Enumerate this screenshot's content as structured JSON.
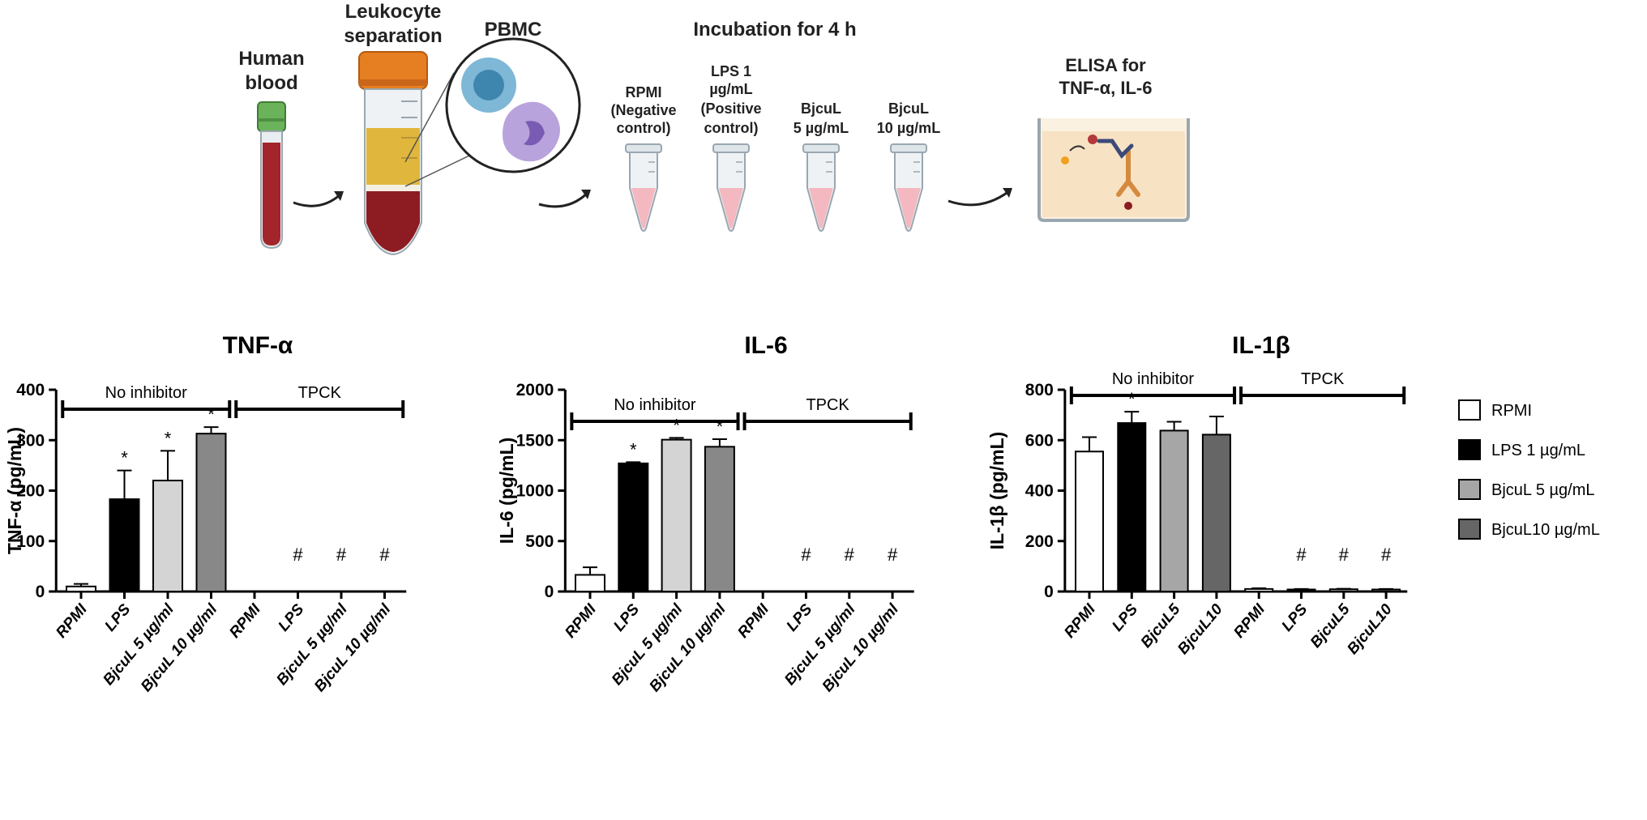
{
  "workflow": {
    "human_blood": [
      "Human",
      "blood"
    ],
    "leukocyte_separation": [
      "Leukocyte",
      "separation"
    ],
    "pbmc": "PBMC",
    "incubation": "Incubation for 4 h",
    "tubes": [
      [
        "RPMI",
        "(Negative",
        "control)"
      ],
      [
        "LPS 1",
        "µg/mL",
        "(Positive",
        "control)"
      ],
      [
        "BjcuL",
        "5 µg/mL"
      ],
      [
        "BjcuL",
        "10 µg/mL"
      ]
    ],
    "elisa": [
      "ELISA for",
      "TNF-α, IL-6"
    ]
  },
  "colors": {
    "RPMI": "#ffffff",
    "LPS": "#000000",
    "Bjcu5_light": "#d4d4d4",
    "Bjcu10_mid": "#888888",
    "Bjcu5_il1b": "#a6a6a6",
    "Bjcu10_il1b": "#666666",
    "blood": "#a3242a",
    "cap_green": "#6bb35a",
    "cap_orange": "#e67e22",
    "plasma": "#e0b73c"
  },
  "legend": {
    "items": [
      {
        "label": "RPMI",
        "color": "#ffffff"
      },
      {
        "label": "LPS 1 µg/mL",
        "color": "#000000"
      },
      {
        "label": "BjcuL 5 µg/mL",
        "color": "#a6a6a6"
      },
      {
        "label": "BjcuL10 µg/mL",
        "color": "#666666"
      }
    ]
  },
  "chart_data": [
    {
      "type": "bar",
      "title": "TNF-α",
      "ylabel": "TNF-α (pg/mL)",
      "ylim": [
        0,
        400
      ],
      "yticks": [
        0,
        100,
        200,
        300,
        400
      ],
      "categories": [
        "RPMI",
        "LPS",
        "BjcuL 5 µg/ml",
        "BjcuL 10 µg/ml",
        "RPMI",
        "LPS",
        "BjcuL 5 µg/ml",
        "BjcuL 10 µg/ml"
      ],
      "values": [
        10,
        183,
        220,
        313,
        0,
        0,
        0,
        0
      ],
      "errors": [
        5,
        57,
        59,
        13,
        0,
        0,
        0,
        0
      ],
      "colors": [
        "#ffffff",
        "#000000",
        "#d4d4d4",
        "#888888",
        "#ffffff",
        "#000000",
        "#d4d4d4",
        "#888888"
      ],
      "marks": [
        "",
        "*",
        "*",
        "*",
        "",
        "#",
        "#",
        "#"
      ],
      "groups": [
        {
          "label": "No inhibitor",
          "from": 0,
          "to": 3
        },
        {
          "label": "TPCK",
          "from": 4,
          "to": 7
        }
      ]
    },
    {
      "type": "bar",
      "title": "IL-6",
      "ylabel": "IL-6 (pg/mL)",
      "ylim": [
        0,
        2000
      ],
      "yticks": [
        0,
        500,
        1000,
        1500,
        2000
      ],
      "categories": [
        "RPMI",
        "LPS",
        "BjcuL 5 µg/ml",
        "BjcuL 10 µg/ml",
        "RPMI",
        "LPS",
        "BjcuL 5 µg/ml",
        "BjcuL 10 µg/ml"
      ],
      "values": [
        165,
        1270,
        1505,
        1435,
        0,
        0,
        0,
        0
      ],
      "errors": [
        75,
        12,
        18,
        75,
        0,
        0,
        0,
        0
      ],
      "colors": [
        "#ffffff",
        "#000000",
        "#d4d4d4",
        "#888888",
        "#ffffff",
        "#000000",
        "#d4d4d4",
        "#888888"
      ],
      "marks": [
        "",
        "*",
        "*",
        "*",
        "",
        "#",
        "#",
        "#"
      ],
      "groups": [
        {
          "label": "No inhibitor",
          "from": 0,
          "to": 3
        },
        {
          "label": "TPCK",
          "from": 4,
          "to": 7
        }
      ]
    },
    {
      "type": "bar",
      "title": "IL-1β",
      "ylabel": "IL-1β (pg/mL)",
      "ylim": [
        0,
        800
      ],
      "yticks": [
        0,
        200,
        400,
        600,
        800
      ],
      "categories": [
        "RPMI",
        "LPS",
        "BjcuL5",
        "BjcuL10",
        "RPMI",
        "LPS",
        "BjcuL5",
        "BjcuL10"
      ],
      "values": [
        555,
        668,
        638,
        622,
        10,
        8,
        9,
        8
      ],
      "errors": [
        57,
        45,
        35,
        72,
        3,
        2,
        2,
        2
      ],
      "colors": [
        "#ffffff",
        "#000000",
        "#a6a6a6",
        "#666666",
        "#ffffff",
        "#000000",
        "#a6a6a6",
        "#666666"
      ],
      "marks": [
        "",
        "*",
        "",
        "",
        "",
        "#",
        "#",
        "#"
      ],
      "groups": [
        {
          "label": "No inhibitor",
          "from": 0,
          "to": 3
        },
        {
          "label": "TPCK",
          "from": 4,
          "to": 7
        }
      ]
    }
  ]
}
